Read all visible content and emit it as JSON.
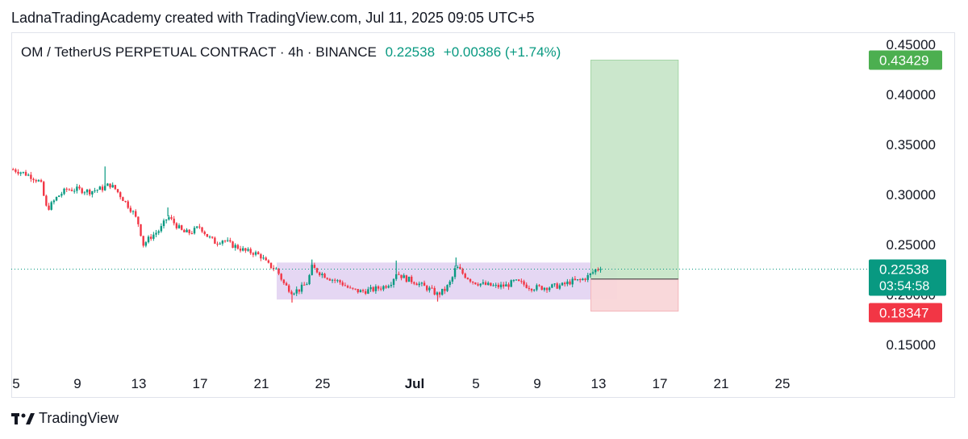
{
  "caption": "LadnaTradingAcademy created with TradingView.com, Jul 11, 2025 09:05 UTC+5",
  "legend": {
    "symbol": "OM / TetherUS PERPETUAL CONTRACT · 4h · BINANCE",
    "last": "0.22538",
    "change": "+0.00386 (+1.74%)"
  },
  "brand": "TradingView",
  "colors": {
    "up": "#089981",
    "down": "#f23645",
    "profit_zone": "#c8e6c9",
    "loss_zone": "#f9d6d8",
    "range_box": "#e1d0f1",
    "take_profit_tag": "#4caf50",
    "stop_tag": "#f23645",
    "price_tag": "#089981"
  },
  "chart_data": {
    "type": "candlestick",
    "y_scale": {
      "min": 0.13,
      "max": 0.46
    },
    "y_ticks": [
      {
        "value": 0.45,
        "label": "0.45000"
      },
      {
        "value": 0.4,
        "label": "0.40000"
      },
      {
        "value": 0.35,
        "label": "0.35000"
      },
      {
        "value": 0.3,
        "label": "0.30000"
      },
      {
        "value": 0.25,
        "label": "0.25000"
      },
      {
        "value": 0.2,
        "label": "0.20000"
      },
      {
        "value": 0.15,
        "label": "0.15000"
      }
    ],
    "x_ticks": [
      {
        "day": 5,
        "label": "5"
      },
      {
        "day": 9,
        "label": "9"
      },
      {
        "day": 13,
        "label": "13"
      },
      {
        "day": 17,
        "label": "17"
      },
      {
        "day": 21,
        "label": "21"
      },
      {
        "day": 25,
        "label": "25"
      },
      {
        "day": 31,
        "label": "Jul"
      },
      {
        "day": 35,
        "label": "5"
      },
      {
        "day": 39,
        "label": "9"
      },
      {
        "day": 43,
        "label": "13"
      },
      {
        "day": 47,
        "label": "17"
      },
      {
        "day": 51,
        "label": "21"
      },
      {
        "day": 55,
        "label": "25"
      }
    ],
    "x_range": [
      4.8,
      63.0
    ],
    "current_price": {
      "value": 0.22538,
      "label": "0.22538",
      "countdown": "03:54:58"
    },
    "take_profit": {
      "value": 0.43429,
      "label": "0.43429"
    },
    "stop_loss": {
      "value": 0.18347,
      "label": "0.18347"
    },
    "entry_price": 0.2155,
    "position_days": [
      42.5,
      48.2
    ],
    "range_box": {
      "day_start": 22.0,
      "day_end": 44.2,
      "top": 0.232,
      "bottom": 0.195
    },
    "close_path": [
      [
        4.8,
        0.325
      ],
      [
        5.4,
        0.322
      ],
      [
        6.0,
        0.318
      ],
      [
        6.6,
        0.312
      ],
      [
        7.0,
        0.285
      ],
      [
        7.3,
        0.29
      ],
      [
        7.7,
        0.298
      ],
      [
        8.3,
        0.305
      ],
      [
        9.0,
        0.305
      ],
      [
        9.8,
        0.303
      ],
      [
        10.6,
        0.306
      ],
      [
        11.1,
        0.31
      ],
      [
        11.5,
        0.305
      ],
      [
        12.0,
        0.295
      ],
      [
        12.6,
        0.283
      ],
      [
        13.0,
        0.27
      ],
      [
        13.3,
        0.25
      ],
      [
        13.8,
        0.258
      ],
      [
        14.4,
        0.265
      ],
      [
        14.9,
        0.278
      ],
      [
        15.4,
        0.27
      ],
      [
        15.9,
        0.262
      ],
      [
        16.4,
        0.262
      ],
      [
        17.0,
        0.268
      ],
      [
        17.5,
        0.258
      ],
      [
        18.0,
        0.252
      ],
      [
        18.5,
        0.255
      ],
      [
        19.0,
        0.25
      ],
      [
        19.5,
        0.247
      ],
      [
        20.0,
        0.243
      ],
      [
        20.5,
        0.242
      ],
      [
        21.0,
        0.238
      ],
      [
        21.4,
        0.23
      ],
      [
        22.0,
        0.225
      ],
      [
        22.5,
        0.21
      ],
      [
        23.0,
        0.203
      ],
      [
        23.5,
        0.205
      ],
      [
        24.0,
        0.212
      ],
      [
        24.3,
        0.227
      ],
      [
        24.8,
        0.222
      ],
      [
        25.5,
        0.216
      ],
      [
        26.2,
        0.212
      ],
      [
        26.8,
        0.205
      ],
      [
        27.5,
        0.203
      ],
      [
        28.3,
        0.205
      ],
      [
        29.0,
        0.208
      ],
      [
        29.5,
        0.213
      ],
      [
        29.8,
        0.222
      ],
      [
        30.4,
        0.216
      ],
      [
        31.0,
        0.213
      ],
      [
        31.6,
        0.208
      ],
      [
        32.0,
        0.205
      ],
      [
        32.5,
        0.2
      ],
      [
        33.0,
        0.205
      ],
      [
        33.4,
        0.214
      ],
      [
        33.7,
        0.228
      ],
      [
        34.2,
        0.22
      ],
      [
        34.8,
        0.213
      ],
      [
        35.5,
        0.21
      ],
      [
        36.3,
        0.208
      ],
      [
        37.0,
        0.209
      ],
      [
        37.5,
        0.213
      ],
      [
        38.0,
        0.211
      ],
      [
        38.6,
        0.207
      ],
      [
        39.3,
        0.207
      ],
      [
        40.0,
        0.208
      ],
      [
        40.6,
        0.209
      ],
      [
        41.2,
        0.213
      ],
      [
        41.8,
        0.214
      ],
      [
        42.4,
        0.219
      ],
      [
        42.9,
        0.226
      ],
      [
        43.2,
        0.22538
      ]
    ],
    "wick_spikes": [
      [
        10.8,
        0.328
      ],
      [
        14.9,
        0.287
      ],
      [
        24.3,
        0.235
      ],
      [
        29.8,
        0.234
      ],
      [
        33.7,
        0.237
      ],
      [
        23.0,
        0.192
      ],
      [
        32.5,
        0.193
      ]
    ]
  }
}
